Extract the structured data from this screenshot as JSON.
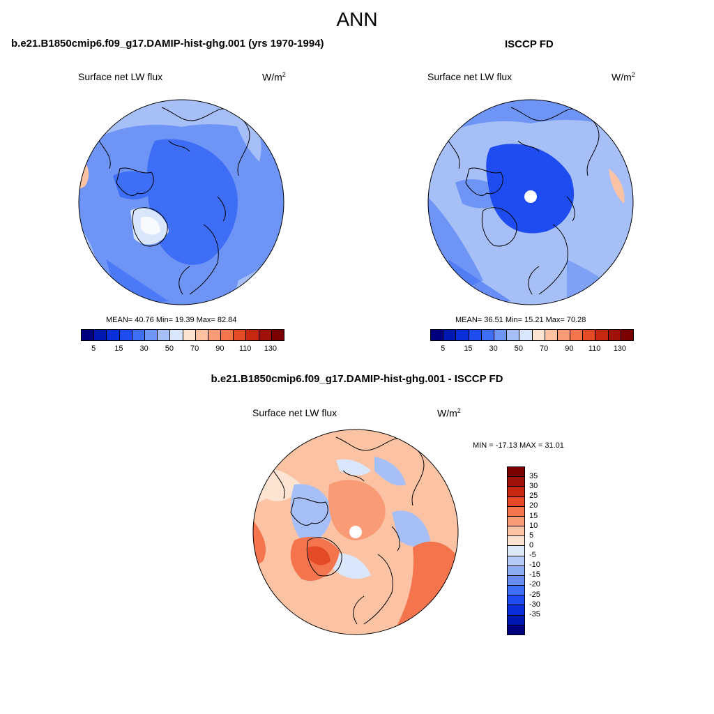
{
  "figure": {
    "title": "ANN"
  },
  "top_left": {
    "title": "b.e21.B1850cmip6.f09_g17.DAMIP-hist-ghg.001 (yrs 1970-1994)",
    "variable": "Surface net LW flux",
    "units_base": "W/m",
    "units_exp": "2",
    "stats": "MEAN=  40.76  Min=  19.39  Max=  82.84"
  },
  "top_right": {
    "title": "ISCCP FD",
    "variable": "Surface net LW flux",
    "units_base": "W/m",
    "units_exp": "2",
    "stats": "MEAN=  36.51  Min=  15.21  Max=  70.28"
  },
  "bottom": {
    "title": "b.e21.B1850cmip6.f09_g17.DAMIP-hist-ghg.001 - ISCCP FD",
    "variable": "Surface net LW flux",
    "units_base": "W/m",
    "units_exp": "2",
    "stats": "MIN = -17.13 MAX =  31.01"
  },
  "colorbar_top": {
    "colors": [
      "#00007f",
      "#0017b2",
      "#0a2fd9",
      "#1f4cf0",
      "#3d6ef5",
      "#6e94f5",
      "#a6bff7",
      "#d9e6fb",
      "#fde3d2",
      "#fbc3a4",
      "#f99b76",
      "#f3744d",
      "#e44a25",
      "#c52710",
      "#a0110a",
      "#7a0000"
    ],
    "tick_labels": [
      "5",
      "15",
      "30",
      "50",
      "70",
      "90",
      "110",
      "130"
    ]
  },
  "colorbar_diff": {
    "colors": [
      "#7a0000",
      "#a0110a",
      "#c52710",
      "#e44a25",
      "#f3744d",
      "#f99b76",
      "#fbc3a4",
      "#fde3d2",
      "#dde8f9",
      "#b6cbf6",
      "#8fadf3",
      "#678df0",
      "#3d6ef5",
      "#1f4cf0",
      "#0a2fd9",
      "#0017b2",
      "#00007f"
    ],
    "tick_labels": [
      "35",
      "30",
      "25",
      "20",
      "15",
      "10",
      "5",
      "0",
      "-5",
      "-10",
      "-15",
      "-20",
      "-25",
      "-30",
      "-35"
    ]
  }
}
